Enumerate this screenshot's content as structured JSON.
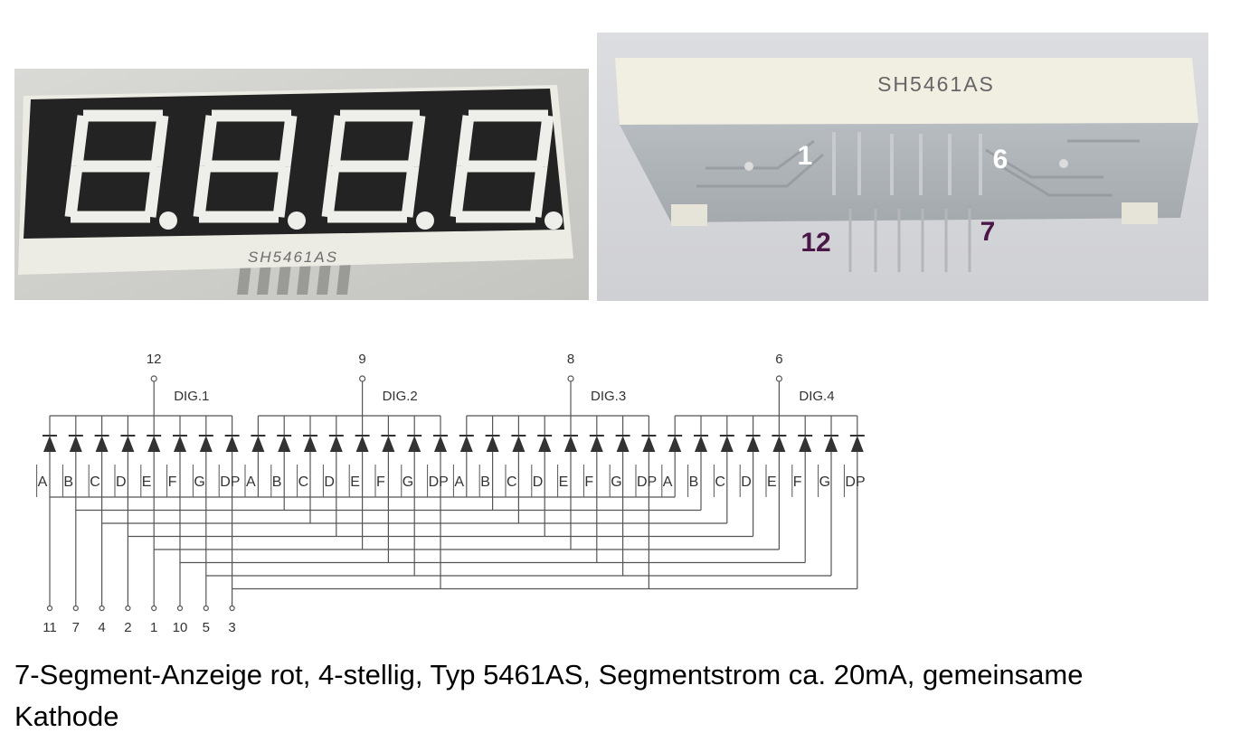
{
  "photo_front": {
    "label": "SH5461AS",
    "display_digits": 4
  },
  "photo_back": {
    "label": "SH5461AS",
    "pin_labels": {
      "top_left": "1",
      "top_right": "6",
      "bottom_left": "12",
      "bottom_right": "7"
    },
    "colors": {
      "top_labels": "#ffffff",
      "bottom_labels": "#4a1848"
    }
  },
  "schematic": {
    "digits": [
      {
        "label": "DIG.1",
        "pin": "12"
      },
      {
        "label": "DIG.2",
        "pin": "9"
      },
      {
        "label": "DIG.3",
        "pin": "8"
      },
      {
        "label": "DIG.4",
        "pin": "6"
      }
    ],
    "segments": [
      "A",
      "B",
      "C",
      "D",
      "E",
      "F",
      "G",
      "DP"
    ],
    "segment_pins": [
      "11",
      "7",
      "4",
      "2",
      "1",
      "10",
      "5",
      "3"
    ]
  },
  "caption": {
    "line1": "7-Segment-Anzeige rot, 4-stellig, Typ 5461AS, Segmentstrom ca. 20mA, gemeinsame",
    "line2": "Kathode"
  }
}
